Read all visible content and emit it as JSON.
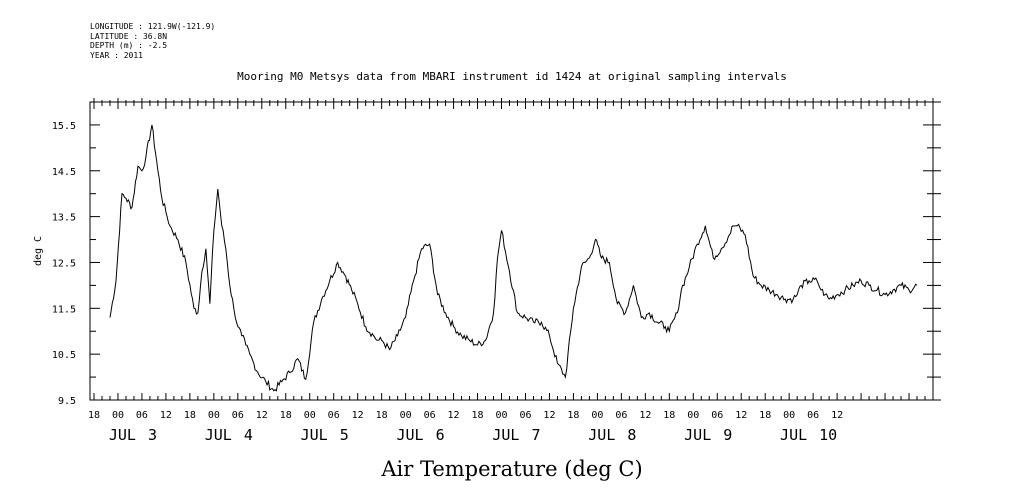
{
  "header": {
    "longitude": "LONGITUDE : 121.9W(-121.9)",
    "latitude": "LATITUDE : 36.8N",
    "depth": "DEPTH (m) : -2.5",
    "year": "YEAR : 2011"
  },
  "chart_data": {
    "type": "line",
    "title": "Mooring M0 Metsys data from MBARI instrument id 1424 at original sampling intervals",
    "xlabel": "Air Temperature (deg C)",
    "ylabel": "deg C",
    "ylim": [
      9.5,
      16.0
    ],
    "y_ticks": [
      "9.5",
      "10.5",
      "11.5",
      "12.5",
      "13.5",
      "14.5",
      "15.5"
    ],
    "x_unit": "hours since 2011-07-02 18:00",
    "xlim": [
      -7,
      204
    ],
    "hour_ticks": [
      "18",
      "00",
      "06",
      "12",
      "18",
      "00",
      "06",
      "12",
      "18",
      "00",
      "06",
      "12",
      "18",
      "00",
      "06",
      "12",
      "18",
      "00",
      "06",
      "12",
      "18",
      "00",
      "06",
      "12",
      "18",
      "00",
      "06",
      "12",
      "18",
      "00",
      "06",
      "12"
    ],
    "date_labels": [
      {
        "text": "JUL",
        "day": "3",
        "x": 6
      },
      {
        "text": "JUL",
        "day": "4",
        "x": 30
      },
      {
        "text": "JUL",
        "day": "5",
        "x": 54
      },
      {
        "text": "JUL",
        "day": "6",
        "x": 78
      },
      {
        "text": "JUL",
        "day": "7",
        "x": 102
      },
      {
        "text": "JUL",
        "day": "8",
        "x": 126
      },
      {
        "text": "JUL",
        "day": "9",
        "x": 150
      },
      {
        "text": "JUL",
        "day": "10",
        "x": 174
      }
    ],
    "grid": false,
    "series": [
      {
        "color": "#000000",
        "x": [
          -2,
          -0.5,
          1,
          2,
          3.5,
          5,
          6,
          7,
          8.5,
          10,
          11,
          12,
          13,
          15,
          17,
          19,
          20,
          21,
          22,
          23,
          24,
          25,
          26,
          27,
          28,
          29,
          30,
          31,
          32,
          33,
          34,
          35,
          37,
          39,
          41,
          43,
          45,
          47,
          49,
          51,
          53,
          55,
          57,
          58.5,
          60,
          62,
          64,
          65,
          66,
          68,
          70,
          72,
          74,
          76,
          78,
          80,
          82,
          84,
          86,
          88,
          90,
          92,
          94,
          95,
          96,
          98,
          100,
          102,
          104,
          106,
          108,
          110,
          112,
          114,
          116,
          118,
          119.5,
          121,
          123,
          125,
          127,
          129,
          131,
          133,
          135,
          137,
          138,
          140,
          141,
          143,
          145,
          147,
          149,
          151,
          153,
          154,
          155,
          157,
          159,
          161,
          163,
          165,
          167,
          169,
          170,
          171,
          173,
          175,
          176,
          177,
          178,
          180,
          182,
          184,
          186,
          188,
          190,
          192,
          194,
          196,
          198,
          200
        ],
        "y": [
          11.3,
          12.1,
          14.0,
          13.9,
          13.7,
          14.6,
          14.5,
          14.8,
          15.5,
          14.5,
          13.9,
          13.6,
          13.3,
          13.0,
          12.5,
          11.5,
          11.4,
          12.3,
          12.8,
          11.6,
          13.2,
          14.1,
          13.3,
          12.8,
          12.0,
          11.5,
          11.1,
          10.9,
          10.7,
          10.5,
          10.3,
          10.1,
          9.9,
          9.7,
          9.9,
          10.1,
          10.4,
          9.95,
          11.2,
          11.7,
          12.1,
          12.5,
          12.2,
          11.9,
          11.6,
          11.1,
          10.9,
          10.8,
          10.8,
          10.6,
          10.9,
          11.3,
          12.1,
          12.8,
          12.9,
          11.8,
          11.4,
          11.1,
          10.9,
          10.8,
          10.7,
          10.8,
          11.4,
          12.6,
          13.2,
          12.3,
          11.4,
          11.3,
          11.2,
          11.2,
          10.9,
          10.3,
          10.0,
          11.5,
          12.4,
          12.6,
          13.0,
          12.6,
          12.5,
          11.6,
          11.4,
          12.0,
          11.3,
          11.4,
          11.2,
          11.1,
          11.0,
          11.4,
          11.9,
          12.4,
          12.9,
          13.3,
          12.6,
          12.8,
          13.1,
          13.3,
          13.3,
          13.1,
          12.2,
          12.0,
          11.9,
          11.8,
          11.7,
          11.7,
          11.8,
          12.0,
          12.1,
          12.1,
          11.9,
          11.8,
          11.7,
          11.8,
          11.9,
          12.0,
          12.1,
          12.0,
          11.9,
          11.8,
          11.9,
          12.0,
          11.9,
          12.0
        ]
      }
    ]
  }
}
